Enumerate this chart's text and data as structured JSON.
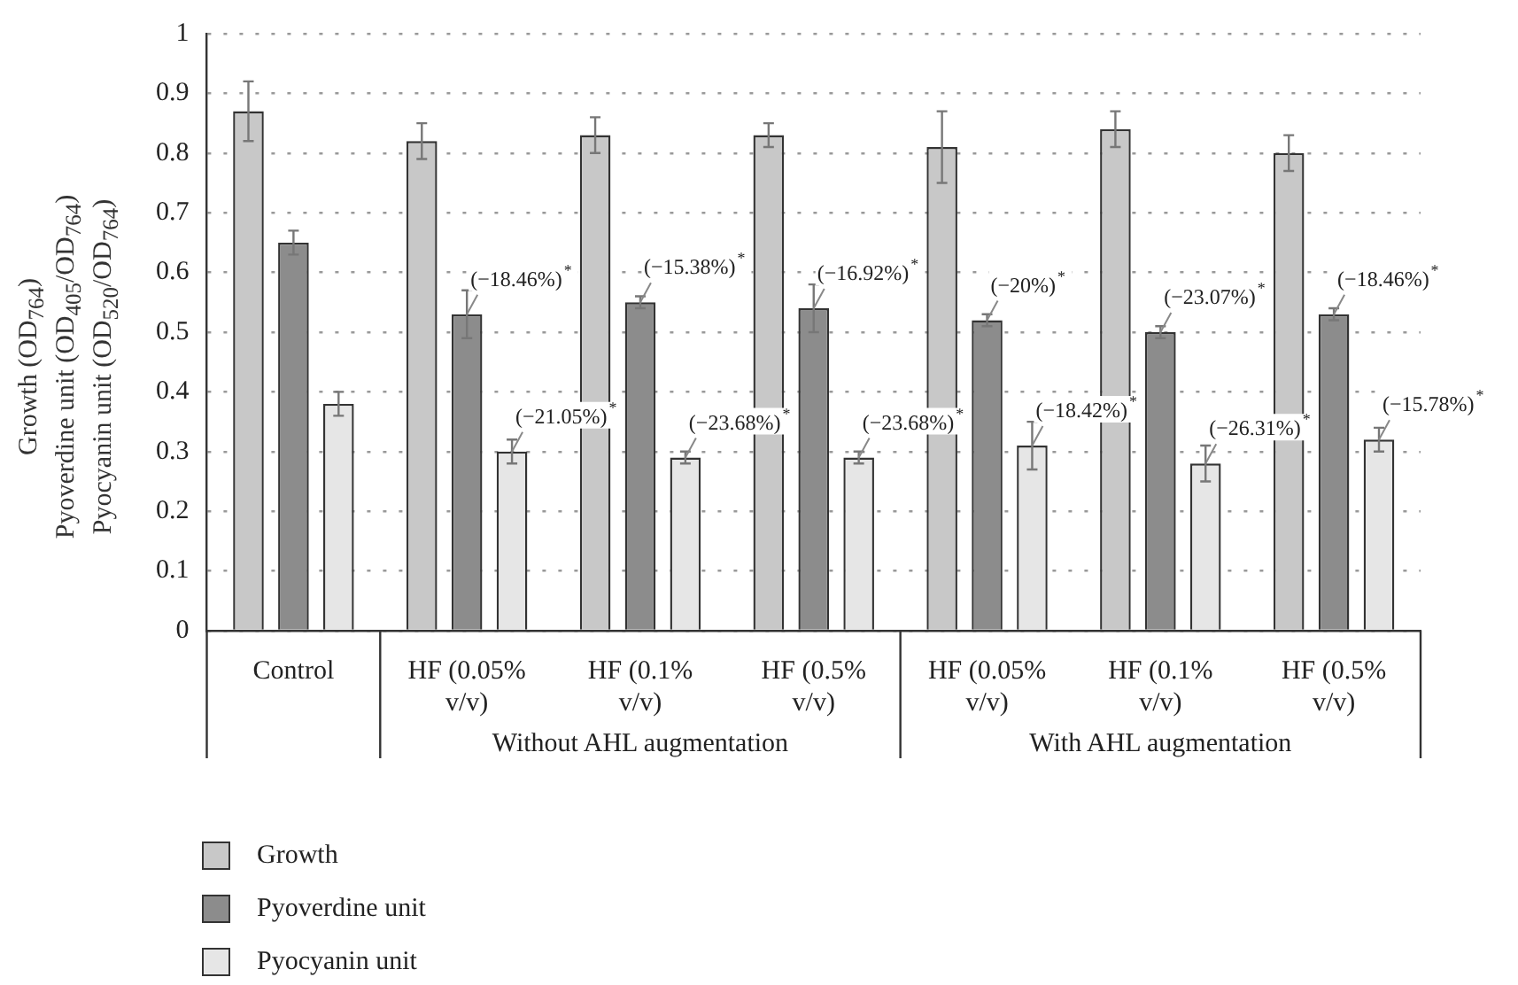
{
  "chart_data": {
    "type": "bar",
    "ylabel": "Growth (OD$_{764}$)\nPyoverdine unit (OD$_{405}$/OD$_{764}$)\nPyocyanin unit (OD$_{520}$/OD$_{764}$)",
    "categories": [
      "Control",
      "HF (0.05% v/v)",
      "HF (0.1% v/v)",
      "HF (0.5% v/v)",
      "HF (0.05% v/v)",
      "HF (0.1% v/v)",
      "HF (0.5% v/v)"
    ],
    "series": [
      {
        "name": "Growth",
        "color": "#c8c8c8",
        "values": [
          0.87,
          0.82,
          0.83,
          0.83,
          0.81,
          0.84,
          0.8
        ],
        "errors": [
          0.05,
          0.03,
          0.03,
          0.02,
          0.06,
          0.03,
          0.03
        ]
      },
      {
        "name": "Pyoverdine unit",
        "color": "#8c8c8c",
        "values": [
          0.65,
          0.53,
          0.55,
          0.54,
          0.52,
          0.5,
          0.53
        ],
        "errors": [
          0.02,
          0.04,
          0.01,
          0.04,
          0.01,
          0.01,
          0.01
        ]
      },
      {
        "name": "Pyocyanin unit",
        "color": "#e6e6e6",
        "values": [
          0.38,
          0.3,
          0.29,
          0.29,
          0.31,
          0.28,
          0.32
        ],
        "errors": [
          0.02,
          0.02,
          0.01,
          0.01,
          0.04,
          0.03,
          0.02
        ]
      }
    ],
    "annotations": [
      "Without AHL augmentation",
      "With AHL augmentation",
      "(−18.46%)$^{*}$",
      "(−21.05%)$^{*}$",
      "(−15.38%)$^{*}$",
      "(−23.68%)$^{*}$",
      "(−16.92%)$^{*}$",
      "(−23.68%)$^{*}$",
      "(−20%)$^{*}$",
      "(−18.42%)$^{*}$",
      "(−23.07%)$^{*}$",
      "(−26.31%)$^{*}$",
      "(−18.46%)$^{*}$",
      "(−15.78%)$^{*}$"
    ],
    "ylim": [
      0,
      1
    ],
    "yticks": [
      0,
      0.1,
      0.2,
      0.3,
      0.4,
      0.5,
      0.6,
      0.7,
      0.8,
      0.9,
      1
    ],
    "grid": "y",
    "legend": "bottom left"
  }
}
